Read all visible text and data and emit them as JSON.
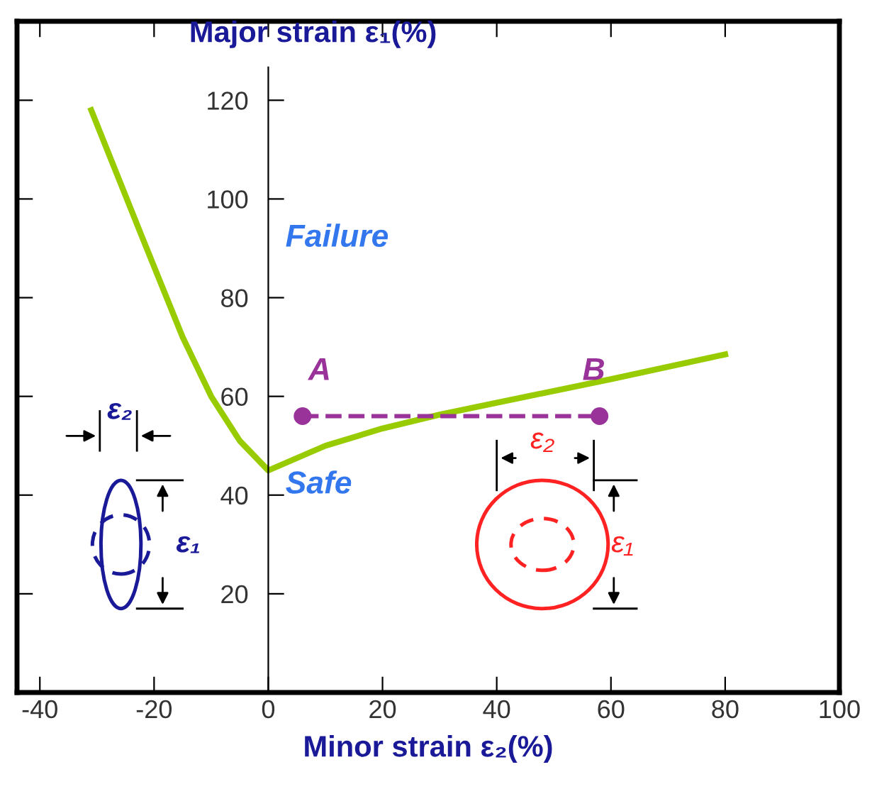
{
  "chart_data": {
    "type": "line",
    "xlabel": "Minor strain ε₂(%)",
    "ylabel": "Major strain ε₁(%)",
    "xlim": [
      -44,
      100
    ],
    "xticks": [
      -40,
      -20,
      0,
      20,
      40,
      60,
      80,
      100
    ],
    "ylim": [
      0,
      136
    ],
    "yticks": [
      20,
      40,
      60,
      80,
      100,
      120
    ],
    "grid": false,
    "series": [
      {
        "color": "#99cc00",
        "x": [
          -31,
          -22,
          -15,
          -10,
          -5,
          0,
          10,
          20,
          30,
          40,
          60,
          80
        ],
        "values": [
          118,
          92,
          72,
          60,
          51,
          45,
          50,
          53.5,
          56.3,
          58.7,
          63.5,
          68.5
        ],
        "line_style": "solid",
        "marker": "none"
      },
      {
        "color": "#993399",
        "x": [
          6,
          58
        ],
        "values": [
          56,
          56
        ],
        "line_style": "dashed",
        "marker": "circle"
      }
    ],
    "annotations": [
      {
        "text": "A",
        "x": 6,
        "y": 56
      },
      {
        "text": "B",
        "x": 58,
        "y": 56
      },
      "Failure",
      "Safe",
      "ε₂",
      "ε₁",
      "ε₂",
      "ε₁"
    ]
  }
}
